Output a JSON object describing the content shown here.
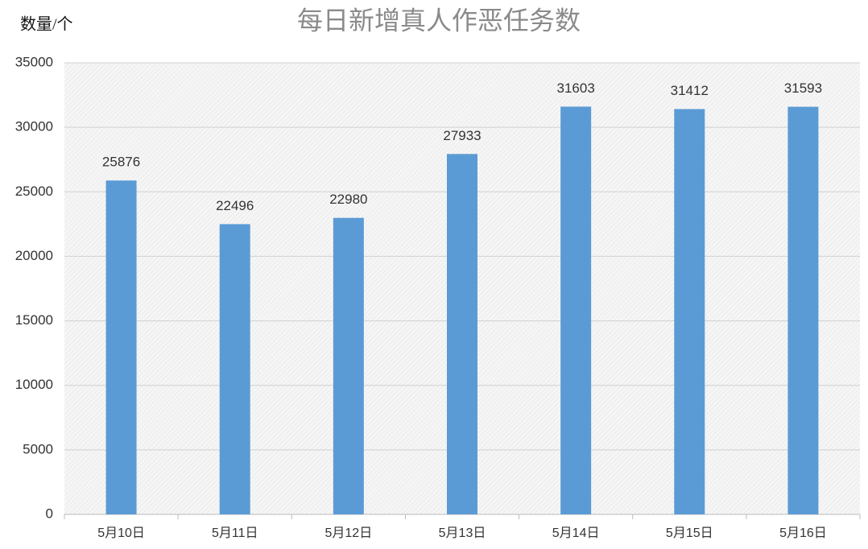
{
  "chart_data": {
    "type": "bar",
    "title": "每日新增真人作恶任务数",
    "y_label": "数量/个",
    "categories": [
      "5月10日",
      "5月11日",
      "5月12日",
      "5月13日",
      "5月14日",
      "5月15日",
      "5月16日"
    ],
    "values": [
      25876,
      22496,
      22980,
      27933,
      31603,
      31412,
      31593
    ],
    "color": "#5b9bd5",
    "ylim": [
      0,
      35000
    ],
    "yticks": [
      0,
      5000,
      10000,
      15000,
      20000,
      25000,
      30000,
      35000
    ],
    "grid": true
  }
}
